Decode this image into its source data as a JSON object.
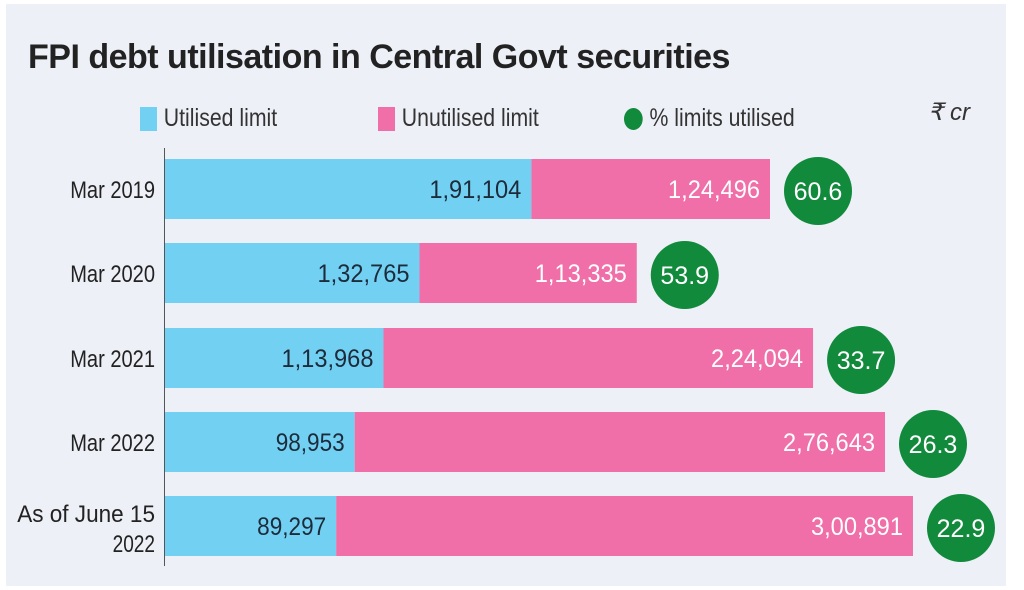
{
  "chart_data": {
    "type": "bar",
    "stacked": true,
    "orientation": "horizontal",
    "title": "FPI debt utilisation in Central Govt securities",
    "unit": "₹ cr",
    "legend": [
      "Utilised limit",
      "Unutilised limit",
      "% limits utilised"
    ],
    "legend_position": "top",
    "categories": [
      "Mar 2019",
      "Mar 2020",
      "Mar 2021",
      "Mar 2022",
      "As of June 15 2022"
    ],
    "category_lines": [
      [
        "Mar 2019"
      ],
      [
        "Mar 2020"
      ],
      [
        "Mar 2021"
      ],
      [
        "Mar 2022"
      ],
      [
        "As of June 15",
        "2022"
      ]
    ],
    "series": [
      {
        "name": "Utilised limit",
        "values": [
          191104,
          132765,
          113968,
          98953,
          89297
        ],
        "labels": [
          "1,91,104",
          "1,32,765",
          "1,13,968",
          "98,953",
          "89,297"
        ],
        "color": "#72d0f3"
      },
      {
        "name": "Unutilised limit",
        "values": [
          124496,
          113335,
          224094,
          276643,
          300891
        ],
        "labels": [
          "1,24,496",
          "1,13,335",
          "2,24,094",
          "2,76,643",
          "3,00,891"
        ],
        "color": "#f06fa8"
      }
    ],
    "percent_utilised": {
      "name": "% limits utilised",
      "values": [
        "60.6",
        "53.9",
        "33.7",
        "26.3",
        "22.9"
      ],
      "color": "#118a3c"
    }
  }
}
